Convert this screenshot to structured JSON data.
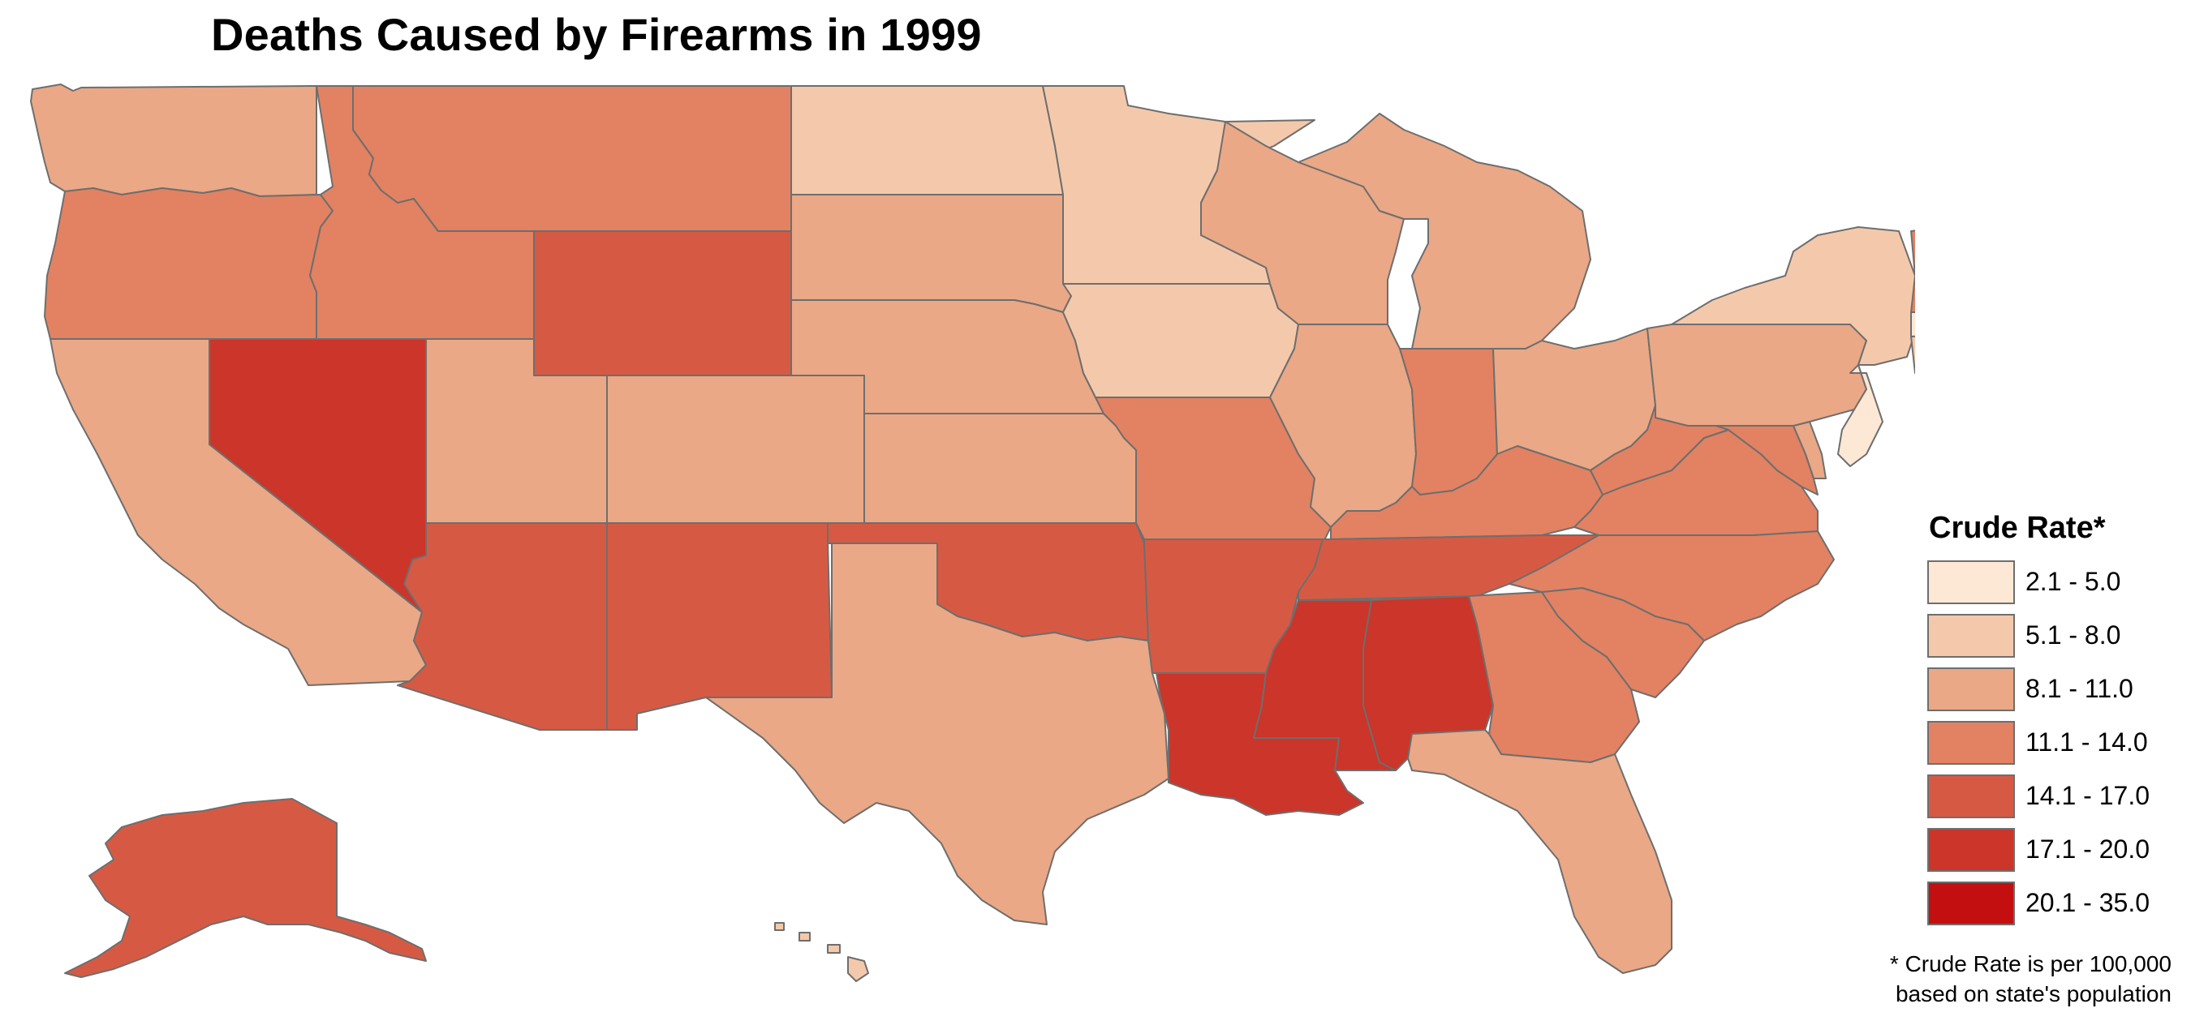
{
  "title": "Deaths Caused by Firearms in 1999",
  "legend": {
    "title": "Crude Rate*",
    "classes": [
      {
        "label": "2.1 - 5.0",
        "min": 2.1,
        "max": 5.0,
        "color": "#fde8d6"
      },
      {
        "label": "5.1 - 8.0",
        "min": 5.1,
        "max": 8.0,
        "color": "#f4c9ab"
      },
      {
        "label": "8.1 - 11.0",
        "min": 8.1,
        "max": 11.0,
        "color": "#eaa886"
      },
      {
        "label": "11.1 - 14.0",
        "min": 11.1,
        "max": 14.0,
        "color": "#e28262"
      },
      {
        "label": "14.1 - 17.0",
        "min": 14.1,
        "max": 17.0,
        "color": "#d65a43"
      },
      {
        "label": "17.1 - 20.0",
        "min": 17.1,
        "max": 20.0,
        "color": "#cc3529"
      },
      {
        "label": "20.1 - 35.0",
        "min": 20.1,
        "max": 35.0,
        "color": "#c40f10"
      }
    ]
  },
  "footnote": {
    "line1": "* Crude Rate is per 100,000",
    "line2": "based on state's population"
  },
  "map_data": {
    "variable": "Crude Rate",
    "states": [
      {
        "id": "WA",
        "class": "8.1 - 11.0"
      },
      {
        "id": "OR",
        "class": "11.1 - 14.0"
      },
      {
        "id": "CA",
        "class": "8.1 - 11.0"
      },
      {
        "id": "NV",
        "class": "17.1 - 20.0"
      },
      {
        "id": "ID",
        "class": "11.1 - 14.0"
      },
      {
        "id": "MT",
        "class": "11.1 - 14.0"
      },
      {
        "id": "WY",
        "class": "14.1 - 17.0"
      },
      {
        "id": "UT",
        "class": "8.1 - 11.0"
      },
      {
        "id": "AZ",
        "class": "14.1 - 17.0"
      },
      {
        "id": "CO",
        "class": "8.1 - 11.0"
      },
      {
        "id": "NM",
        "class": "14.1 - 17.0"
      },
      {
        "id": "ND",
        "class": "5.1 - 8.0"
      },
      {
        "id": "SD",
        "class": "8.1 - 11.0"
      },
      {
        "id": "NE",
        "class": "8.1 - 11.0"
      },
      {
        "id": "KS",
        "class": "8.1 - 11.0"
      },
      {
        "id": "OK",
        "class": "14.1 - 17.0"
      },
      {
        "id": "TX",
        "class": "8.1 - 11.0"
      },
      {
        "id": "MN",
        "class": "5.1 - 8.0"
      },
      {
        "id": "IA",
        "class": "5.1 - 8.0"
      },
      {
        "id": "MO",
        "class": "11.1 - 14.0"
      },
      {
        "id": "AR",
        "class": "14.1 - 17.0"
      },
      {
        "id": "LA",
        "class": "17.1 - 20.0"
      },
      {
        "id": "WI",
        "class": "8.1 - 11.0"
      },
      {
        "id": "IL",
        "class": "8.1 - 11.0"
      },
      {
        "id": "MI",
        "class": "8.1 - 11.0"
      },
      {
        "id": "IN",
        "class": "11.1 - 14.0"
      },
      {
        "id": "OH",
        "class": "8.1 - 11.0"
      },
      {
        "id": "KY",
        "class": "11.1 - 14.0"
      },
      {
        "id": "TN",
        "class": "14.1 - 17.0"
      },
      {
        "id": "MS",
        "class": "17.1 - 20.0"
      },
      {
        "id": "AL",
        "class": "17.1 - 20.0"
      },
      {
        "id": "GA",
        "class": "11.1 - 14.0"
      },
      {
        "id": "FL",
        "class": "8.1 - 11.0"
      },
      {
        "id": "SC",
        "class": "11.1 - 14.0"
      },
      {
        "id": "NC",
        "class": "11.1 - 14.0"
      },
      {
        "id": "VA",
        "class": "11.1 - 14.0"
      },
      {
        "id": "WV",
        "class": "11.1 - 14.0"
      },
      {
        "id": "MD",
        "class": "11.1 - 14.0"
      },
      {
        "id": "DE",
        "class": "8.1 - 11.0"
      },
      {
        "id": "PA",
        "class": "8.1 - 11.0"
      },
      {
        "id": "NJ",
        "class": "2.1 - 5.0"
      },
      {
        "id": "NY",
        "class": "5.1 - 8.0"
      },
      {
        "id": "CT",
        "class": "5.1 - 8.0"
      },
      {
        "id": "RI",
        "class": "2.1 - 5.0"
      },
      {
        "id": "MA",
        "class": "2.1 - 5.0"
      },
      {
        "id": "VT",
        "class": "11.1 - 14.0"
      },
      {
        "id": "NH",
        "class": "5.1 - 8.0"
      },
      {
        "id": "ME",
        "class": "8.1 - 11.0"
      },
      {
        "id": "AK",
        "class": "14.1 - 17.0"
      },
      {
        "id": "HI",
        "class": "5.1 - 8.0"
      }
    ]
  }
}
